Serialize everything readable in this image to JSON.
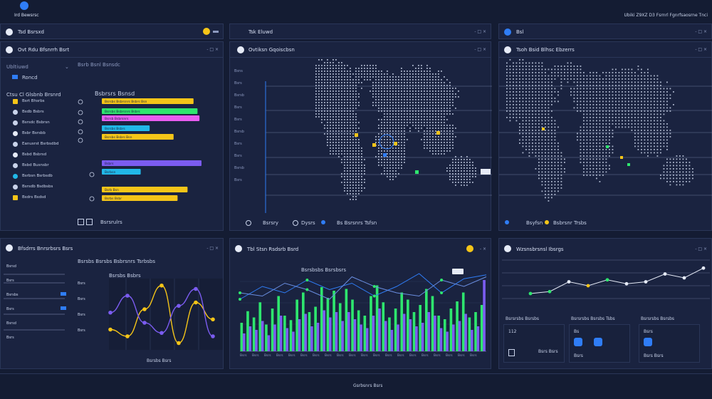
{
  "app": {
    "brand": "Ird Bewsrsc",
    "top_right": "Ubiki Z9XZ D3 Fsrnrl Fgnrfsaosrne Tnci"
  },
  "colors": {
    "bg": "#141c33",
    "panel": "#1a2340",
    "yellow": "#f5c518",
    "green": "#2ee66e",
    "blue": "#2f7df6",
    "cyan": "#21b8e8",
    "purple": "#7b5cf0",
    "pink": "#e85cf0"
  },
  "panels": {
    "p1": {
      "title": "Tsd Bsrsxd",
      "control": "- - -"
    },
    "p2": {
      "title": "Tsk Eluwd",
      "control": "- □ ×"
    },
    "p3": {
      "title": "Bsl",
      "control": "- □ ×"
    },
    "p4": {
      "title": "Ovt Rdu Bfsnrrh Bsrt",
      "control": "- □ ×"
    },
    "p5": {
      "title": "Ovtiksn Gqoiscbsn",
      "control": "- □ ×"
    },
    "p6": {
      "title": "Tsoh Bsid Blhsc Ebzerrs",
      "control": "- □ ×"
    },
    "p7": {
      "title": "Bfsdrrs Bnrsrbsrs Bsrs",
      "control": "- □ ×"
    },
    "p8": {
      "title": "Tbl Stsn Rsdsrb Bsrd",
      "control": "- ×"
    },
    "p9": {
      "title": "Wzsnsbrsnsl Ibsrgs",
      "control": "- □ ×"
    }
  },
  "bars_panel": {
    "sidebar_header": "Ubltiuwd",
    "sidebar_sub": "Roncd",
    "sidebar_label": "Ctsu Cl Glsbnb Brsnrd",
    "sidebar_items": [
      "Bsrt Bhsrbs",
      "Bsdb Bsbrs",
      "Bsrsdc Bsbrsn",
      "Bsbr Bsrsbb",
      "Eanusrst Bsrbsdbd",
      "Bsbd Bsbrsd",
      "Bsbd Busnsbr",
      "Bsrbsn Bsrbsdb",
      "Bsrsdb Bsdbsbs",
      "Bsdrs Bsdsd"
    ],
    "top_label": "Bsrb Bsnl Bsnsdc",
    "chart_title": "Bsbrsrs Bsnsd",
    "bar_labels": [
      "Bsrsbs Bsbrsnrs Bsbrs Bsn",
      "Bsrsbs Bsbrsnrs Bsbrs",
      "Bsrsb Bsbrsnrs",
      "Bsrsbs Bsbrs",
      "Bsrsbs Bsbrs Bsn",
      "Bsbrs",
      "Bsrbsn",
      "Bsrb Bsn",
      "Bsrsbs",
      "Bsrbs Bsbr"
    ],
    "footer": "Bsrsrulrs"
  },
  "map_panel": {
    "legend": [
      "Bsrsry",
      "Dysrs",
      "Bs Bsrsnrs Tsfsn"
    ],
    "y_labels": [
      "Bsns",
      "Bsrs",
      "Bsrsb",
      "Bsrs",
      "Bsrs",
      "Bsrsb",
      "Bsrs",
      "Bsrs",
      "Bsrsb",
      "Bsrs"
    ]
  },
  "map2_panel": {
    "legend": [
      "Bsyfsn",
      "Bsbrsnr Trsbs"
    ]
  },
  "line_panel": {
    "left_labels": [
      "Bsrsd",
      "Bsrs",
      "Bsrsbs",
      "Bsrs",
      "Bsrsd",
      "Bsrs"
    ],
    "chart_title": "Bsrsbs Bsrsbs Bsbrsnrs Tsrbsbs",
    "sub_label": "Bsrsbs Bsbrs",
    "side_labels": [
      "Bsrs",
      "Bsrs",
      "Bsrs",
      "Bsrs"
    ],
    "x_label": "Bsrsbs Bsrs"
  },
  "bar_chart_panel": {
    "chart_title": "Bsrsbsbs Bsrsbsrs",
    "x_labels": [
      "Bsrs",
      "Bsrs",
      "Bsrs",
      "Bsrs",
      "Bsrs",
      "Bsrs",
      "Bsrs",
      "Bsrs",
      "Bsrs",
      "Bsrs",
      "Bsrs",
      "Bsrs",
      "Bsrs",
      "Bsrs",
      "Bsrs",
      "Bsrs",
      "Bsrs",
      "Bsrs",
      "Bsrs",
      "Bsrs"
    ]
  },
  "stats_panel": {
    "boxes": [
      {
        "title": "Bsrsrsbs Bsrsbs",
        "value": "112",
        "sub": "Bsrs Bsrs"
      },
      {
        "title": "Bsrsrsbs Bsrsbs Tsbs",
        "value": "Bs",
        "sub": "Bsrs"
      },
      {
        "title": "Bsrsrsbs Bsrsbs",
        "value": "Bsrs",
        "sub": "Bsrs Bsrs"
      }
    ]
  },
  "footer": {
    "label": "Gsrbsnrs Bsrs"
  },
  "chart_data": [
    {
      "type": "bar",
      "title": "Bsbrsrs Bsnsd",
      "categories": [
        "1",
        "2",
        "3",
        "4",
        "5",
        "6",
        "7",
        "8",
        "9",
        "10"
      ],
      "values": [
        92,
        96,
        98,
        48,
        72,
        100,
        39,
        86,
        52,
        76
      ]
    },
    {
      "type": "line",
      "title": "Bsrsbs Bsrsbs Bsbrsnrs Tsrbsbs",
      "series": [
        {
          "x": [
            0,
            1,
            2,
            3,
            4,
            5,
            6
          ],
          "y": [
            30,
            20,
            60,
            95,
            10,
            70,
            45
          ]
        },
        {
          "x": [
            0,
            1,
            2,
            3,
            4,
            5,
            6
          ],
          "y": [
            55,
            80,
            40,
            25,
            65,
            90,
            20
          ]
        }
      ]
    },
    {
      "type": "bar",
      "title": "Bsrsbsbs Bsrsbsrs",
      "series": [
        {
          "values": [
            32,
            45,
            38,
            55,
            30,
            48,
            62,
            40,
            35,
            58,
            66,
            44,
            50,
            72,
            60,
            68,
            54,
            70,
            58,
            46,
            40,
            62,
            74,
            55,
            38,
            48,
            66,
            58,
            44,
            52,
            70,
            62,
            40,
            36,
            48,
            56,
            66,
            38,
            44,
            52
          ]
        },
        {
          "values": [
            20,
            28,
            24,
            34,
            18,
            30,
            40,
            26,
            22,
            36,
            42,
            28,
            32,
            46,
            38,
            44,
            34,
            44,
            36,
            30,
            26,
            40,
            48,
            34,
            24,
            30,
            42,
            36,
            28,
            32,
            44,
            40,
            26,
            22,
            30,
            34,
            42,
            24,
            28,
            80
          ]
        }
      ],
      "lines": [
        {
          "y": [
            50,
            70,
            60,
            80,
            65,
            75,
            55,
            70,
            90,
            60,
            82,
            88
          ]
        },
        {
          "y": [
            60,
            55,
            75,
            65,
            50,
            85,
            70,
            60,
            55,
            80,
            70,
            85
          ]
        }
      ]
    },
    {
      "type": "line",
      "title": "Wzsnsbrsnsl Ibsrgs",
      "series": [
        {
          "y": [
            20,
            25,
            50,
            40,
            55,
            45,
            50,
            70,
            60,
            85
          ]
        }
      ]
    }
  ]
}
